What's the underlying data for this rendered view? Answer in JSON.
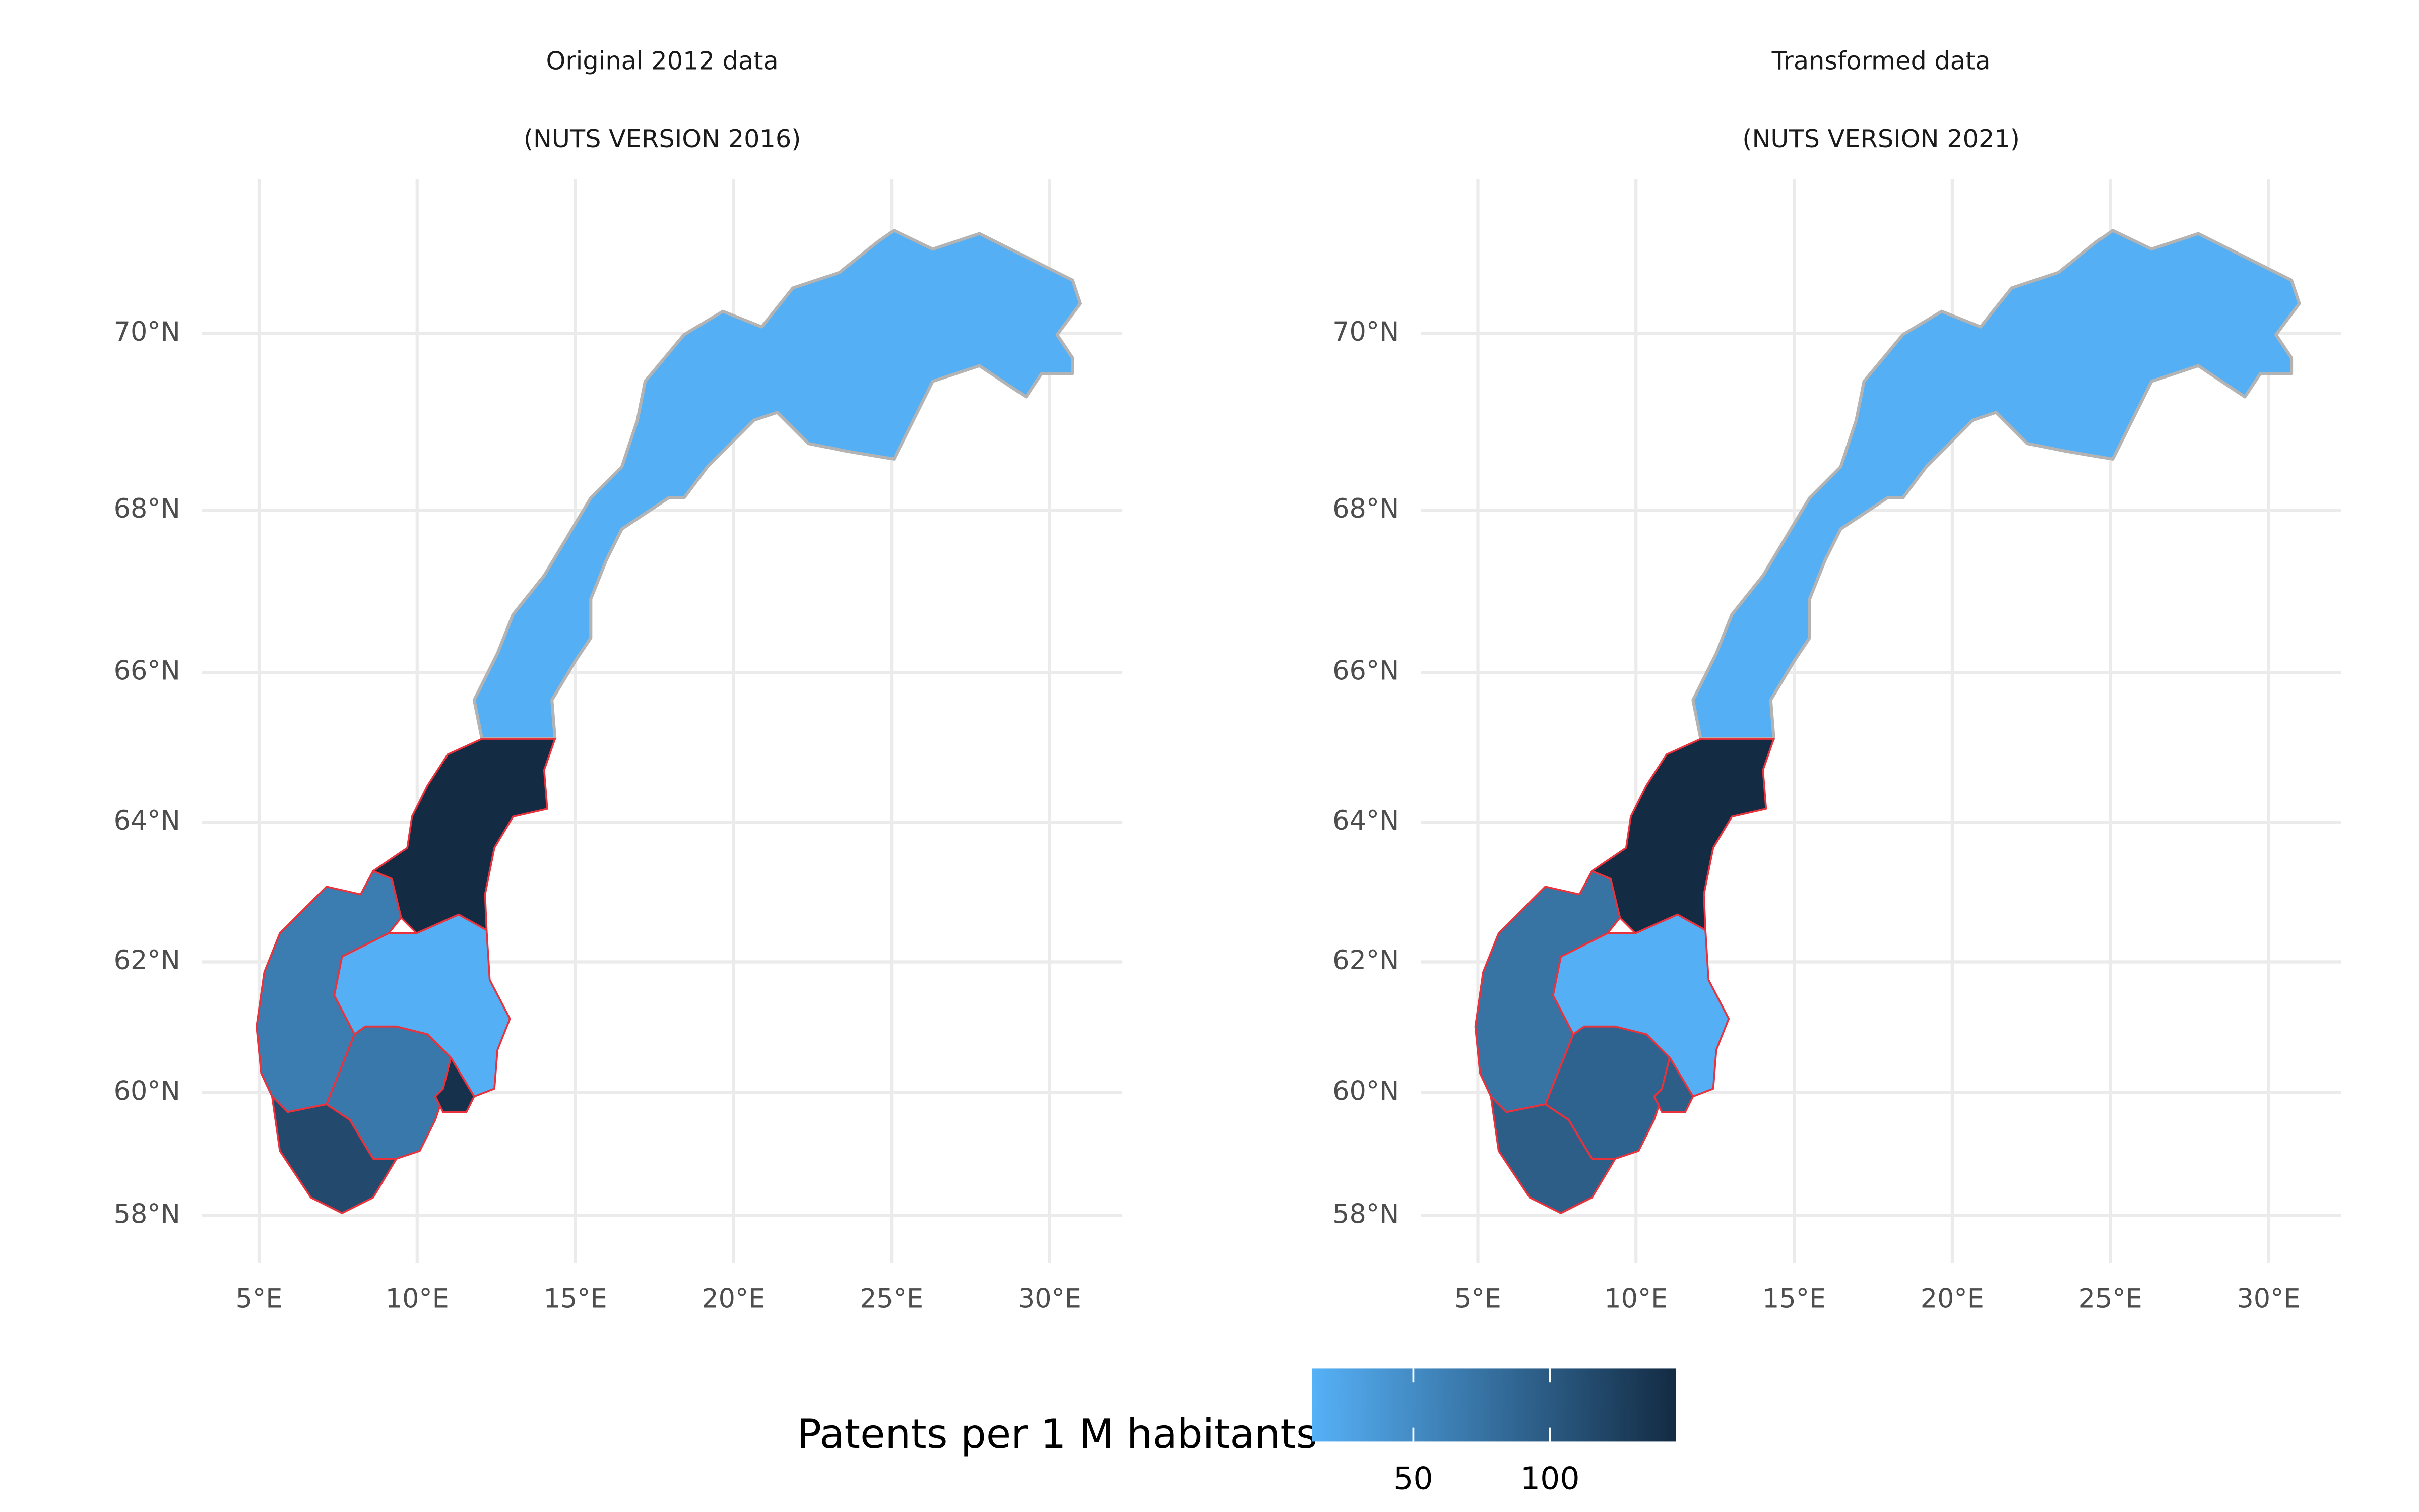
{
  "chart_data": [
    {
      "type": "map",
      "title": "Original 2012 data",
      "subtitle": "(NUTS VERSION 2016)",
      "xlim": [
        3.2,
        32.3
      ],
      "ylim": [
        57.2,
        71.6
      ],
      "grid": true,
      "xticks": [
        {
          "value": 5,
          "label": "5°E"
        },
        {
          "value": 10,
          "label": "10°E"
        },
        {
          "value": 15,
          "label": "15°E"
        },
        {
          "value": 20,
          "label": "20°E"
        },
        {
          "value": 25,
          "label": "25°E"
        },
        {
          "value": 30,
          "label": "30°E"
        }
      ],
      "yticks": [
        {
          "value": 58,
          "label": "58°N"
        },
        {
          "value": 60,
          "label": "60°N"
        },
        {
          "value": 62,
          "label": "62°N"
        },
        {
          "value": 64,
          "label": "64°N"
        },
        {
          "value": 66,
          "label": "66°N"
        },
        {
          "value": 68,
          "label": "68°N"
        },
        {
          "value": 70,
          "label": "70°N"
        }
      ],
      "values": [
        15,
        146,
        65,
        115,
        15,
        70,
        140
      ],
      "outline_colors": [
        "#b3b3b3",
        "#e8323c",
        "#e8323c",
        "#e8323c",
        "#e8323c",
        "#e8323c",
        "#e8323c"
      ]
    },
    {
      "type": "map",
      "title": "Transformed data",
      "subtitle": "(NUTS VERSION 2021)",
      "xlim": [
        3.2,
        32.3
      ],
      "ylim": [
        57.2,
        71.6
      ],
      "grid": true,
      "xticks": [
        {
          "value": 5,
          "label": "5°E"
        },
        {
          "value": 10,
          "label": "10°E"
        },
        {
          "value": 15,
          "label": "15°E"
        },
        {
          "value": 20,
          "label": "20°E"
        },
        {
          "value": 25,
          "label": "25°E"
        },
        {
          "value": 30,
          "label": "30°E"
        }
      ],
      "yticks": [
        {
          "value": 58,
          "label": "58°N"
        },
        {
          "value": 60,
          "label": "60°N"
        },
        {
          "value": 62,
          "label": "62°N"
        },
        {
          "value": 64,
          "label": "64°N"
        },
        {
          "value": 66,
          "label": "66°N"
        },
        {
          "value": 68,
          "label": "68°N"
        },
        {
          "value": 70,
          "label": "70°N"
        }
      ],
      "values": [
        15,
        146,
        75,
        95,
        15,
        90,
        95
      ],
      "outline_colors": [
        "#b3b3b3",
        "#e8323c",
        "#e8323c",
        "#e8323c",
        "#e8323c",
        "#e8323c",
        "#e8323c"
      ]
    }
  ],
  "legend": {
    "title": "Patents per 1 M habitants",
    "lim": [
      13,
      146
    ],
    "ticks": [
      50,
      100
    ],
    "low_color": "#56b1f7",
    "high_color": "#132b43"
  }
}
